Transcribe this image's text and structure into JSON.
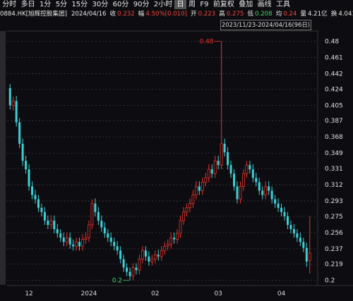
{
  "toolbar": [
    "分时",
    "多日",
    "1分",
    "5分",
    "15分",
    "30分",
    "60分",
    "90分",
    "2小时",
    "日",
    "周",
    "F9",
    "前复权",
    "叠加",
    "画线",
    "工具"
  ],
  "toolbar_active": 9,
  "quote": {
    "code": "0884.HK[旭辉控股集团]",
    "date": "2024/04/16",
    "items": [
      {
        "label": "收",
        "value": "0.232",
        "color": "#f0443c"
      },
      {
        "label": "幅",
        "value": "4.50%[0.010]",
        "color": "#f0443c"
      },
      {
        "label": "开",
        "value": "0.223",
        "color": "#f0443c"
      },
      {
        "label": "高",
        "value": "0.275",
        "color": "#f0443c"
      },
      {
        "label": "低",
        "value": "0.208",
        "color": "#3fd46a"
      },
      {
        "label": "均",
        "value": "0.24",
        "color": "#f0443c"
      },
      {
        "label": "量",
        "value": "4.21亿",
        "color": "#e8e8e8"
      },
      {
        "label": "换",
        "value": "4.041%",
        "color": "#e8e8e8"
      }
    ]
  },
  "range": "2023/11/23-2024/04/16(96日)",
  "chart_data": {
    "type": "candlestick",
    "categories": [
      null,
      null,
      null,
      null,
      null,
      null,
      "12",
      null,
      null,
      null,
      null,
      null,
      null,
      null,
      null,
      null,
      null,
      null,
      null,
      null,
      null,
      null,
      null,
      null,
      null,
      "2024",
      null,
      null,
      null,
      null,
      null,
      null,
      null,
      null,
      null,
      null,
      null,
      null,
      null,
      null,
      null,
      null,
      null,
      null,
      null,
      null,
      "02",
      null,
      null,
      null,
      null,
      null,
      null,
      null,
      null,
      null,
      null,
      null,
      null,
      null,
      null,
      null,
      null,
      null,
      null,
      null,
      "03",
      null,
      null,
      null,
      null,
      null,
      null,
      null,
      null,
      null,
      null,
      null,
      null,
      null,
      null,
      null,
      null,
      null,
      null,
      null,
      "04",
      null,
      null,
      null,
      null,
      null,
      null,
      null,
      null,
      null
    ],
    "open": [
      0.425,
      0.405,
      0.41,
      0.385,
      0.36,
      0.34,
      0.33,
      0.31,
      0.3,
      0.295,
      0.285,
      0.28,
      0.27,
      0.265,
      0.27,
      0.26,
      0.255,
      0.25,
      0.245,
      0.25,
      0.242,
      0.24,
      0.245,
      0.24,
      0.248,
      0.25,
      0.265,
      0.29,
      0.28,
      0.27,
      0.262,
      0.255,
      0.25,
      0.245,
      0.24,
      0.235,
      0.225,
      0.215,
      0.21,
      0.205,
      0.215,
      0.212,
      0.225,
      0.235,
      0.228,
      0.222,
      0.225,
      0.23,
      0.228,
      0.235,
      0.24,
      0.242,
      0.25,
      0.248,
      0.255,
      0.27,
      0.28,
      0.285,
      0.29,
      0.3,
      0.31,
      0.305,
      0.315,
      0.32,
      0.33,
      0.325,
      0.34,
      0.335,
      0.36,
      0.35,
      0.335,
      0.325,
      0.31,
      0.295,
      0.31,
      0.325,
      0.335,
      0.33,
      0.32,
      0.315,
      0.305,
      0.3,
      0.31,
      0.305,
      0.295,
      0.29,
      0.285,
      0.28,
      0.275,
      0.265,
      0.26,
      0.255,
      0.25,
      0.245,
      0.238,
      0.223
    ],
    "high": [
      0.43,
      0.415,
      0.416,
      0.39,
      0.366,
      0.346,
      0.336,
      0.316,
      0.306,
      0.3,
      0.29,
      0.286,
      0.276,
      0.276,
      0.276,
      0.266,
      0.26,
      0.256,
      0.256,
      0.256,
      0.248,
      0.25,
      0.25,
      0.254,
      0.256,
      0.27,
      0.295,
      0.296,
      0.286,
      0.276,
      0.268,
      0.26,
      0.256,
      0.25,
      0.246,
      0.24,
      0.23,
      0.22,
      0.215,
      0.22,
      0.22,
      0.23,
      0.24,
      0.24,
      0.234,
      0.23,
      0.235,
      0.236,
      0.24,
      0.245,
      0.248,
      0.256,
      0.256,
      0.26,
      0.276,
      0.286,
      0.29,
      0.296,
      0.306,
      0.316,
      0.316,
      0.32,
      0.326,
      0.336,
      0.336,
      0.346,
      0.346,
      0.48,
      0.366,
      0.356,
      0.34,
      0.33,
      0.316,
      0.316,
      0.33,
      0.34,
      0.34,
      0.336,
      0.326,
      0.32,
      0.31,
      0.316,
      0.316,
      0.31,
      0.3,
      0.296,
      0.29,
      0.286,
      0.28,
      0.27,
      0.266,
      0.26,
      0.256,
      0.25,
      0.244,
      0.275
    ],
    "low": [
      0.4,
      0.399,
      0.38,
      0.355,
      0.334,
      0.325,
      0.305,
      0.295,
      0.29,
      0.28,
      0.275,
      0.265,
      0.26,
      0.26,
      0.255,
      0.25,
      0.245,
      0.24,
      0.24,
      0.237,
      0.235,
      0.235,
      0.235,
      0.235,
      0.243,
      0.245,
      0.26,
      0.275,
      0.265,
      0.257,
      0.25,
      0.245,
      0.24,
      0.235,
      0.23,
      0.22,
      0.21,
      0.205,
      0.2,
      0.2,
      0.207,
      0.207,
      0.22,
      0.223,
      0.217,
      0.217,
      0.22,
      0.223,
      0.223,
      0.23,
      0.235,
      0.237,
      0.243,
      0.243,
      0.25,
      0.265,
      0.275,
      0.28,
      0.285,
      0.295,
      0.3,
      0.3,
      0.31,
      0.315,
      0.32,
      0.32,
      0.33,
      0.33,
      0.345,
      0.33,
      0.32,
      0.305,
      0.29,
      0.29,
      0.305,
      0.32,
      0.325,
      0.315,
      0.31,
      0.3,
      0.295,
      0.295,
      0.3,
      0.29,
      0.285,
      0.28,
      0.275,
      0.27,
      0.26,
      0.255,
      0.25,
      0.245,
      0.24,
      0.233,
      0.216,
      0.208
    ],
    "close": [
      0.405,
      0.41,
      0.385,
      0.36,
      0.34,
      0.33,
      0.31,
      0.3,
      0.295,
      0.285,
      0.28,
      0.27,
      0.265,
      0.27,
      0.26,
      0.255,
      0.25,
      0.245,
      0.25,
      0.242,
      0.24,
      0.245,
      0.24,
      0.248,
      0.25,
      0.265,
      0.29,
      0.28,
      0.27,
      0.262,
      0.255,
      0.25,
      0.245,
      0.24,
      0.235,
      0.225,
      0.215,
      0.21,
      0.205,
      0.215,
      0.212,
      0.225,
      0.235,
      0.228,
      0.222,
      0.225,
      0.23,
      0.228,
      0.235,
      0.24,
      0.242,
      0.25,
      0.248,
      0.255,
      0.27,
      0.28,
      0.285,
      0.29,
      0.3,
      0.31,
      0.305,
      0.315,
      0.32,
      0.33,
      0.325,
      0.34,
      0.335,
      0.36,
      0.35,
      0.335,
      0.325,
      0.31,
      0.295,
      0.31,
      0.325,
      0.335,
      0.33,
      0.32,
      0.315,
      0.305,
      0.3,
      0.31,
      0.305,
      0.295,
      0.29,
      0.285,
      0.28,
      0.275,
      0.265,
      0.26,
      0.255,
      0.25,
      0.245,
      0.238,
      0.222,
      0.232
    ],
    "up_color": "#e8312c",
    "down_color": "#3ccfd6",
    "ylim": [
      0.194,
      0.492
    ],
    "yticks": [
      0.2,
      0.219,
      0.237,
      0.256,
      0.275,
      0.293,
      0.312,
      0.331,
      0.349,
      0.368,
      0.387,
      0.405,
      0.424,
      0.442,
      0.461,
      0.48
    ],
    "grid": true,
    "annotations": [
      "0.48",
      "0.2"
    ]
  }
}
